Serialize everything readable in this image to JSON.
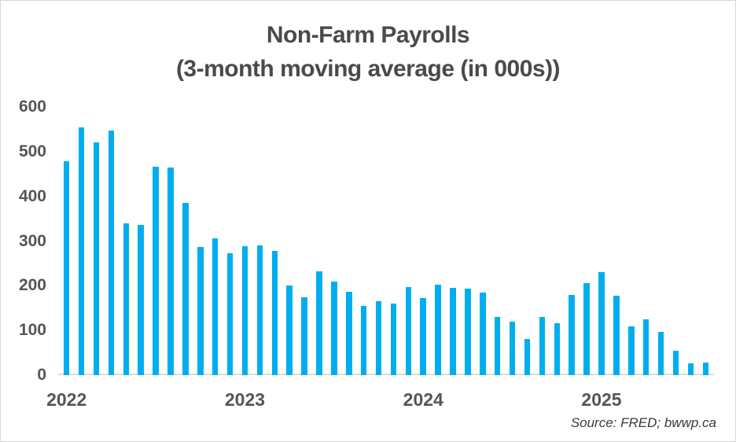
{
  "title": {
    "line1": "Non-Farm Payrolls",
    "line2": "(3-month moving average (in 000s))"
  },
  "source_note": "Source: FRED; bwwp.ca",
  "colors": {
    "bar": "#00AEF0",
    "title_text": "#4A4A4A",
    "axis_text": "#555555",
    "axis_line": "#DCDCDC",
    "background": "#FFFFFF",
    "border": "#D6D6D6"
  },
  "chart_data": {
    "type": "bar",
    "title": "Non-Farm Payrolls (3-month moving average (in 000s))",
    "xlabel": "",
    "ylabel": "",
    "ylim": [
      0,
      600
    ],
    "y_ticks": [
      0,
      100,
      200,
      300,
      400,
      500,
      600
    ],
    "grid": false,
    "legend": false,
    "x": [
      "Jan 2022",
      "Feb 2022",
      "Mar 2022",
      "Apr 2022",
      "May 2022",
      "Jun 2022",
      "Jul 2022",
      "Aug 2022",
      "Sep 2022",
      "Oct 2022",
      "Nov 2022",
      "Dec 2022",
      "Jan 2023",
      "Feb 2023",
      "Mar 2023",
      "Apr 2023",
      "May 2023",
      "Jun 2023",
      "Jul 2023",
      "Aug 2023",
      "Sep 2023",
      "Oct 2023",
      "Nov 2023",
      "Dec 2023",
      "Jan 2024",
      "Feb 2024",
      "Mar 2024",
      "Apr 2024",
      "May 2024",
      "Jun 2024",
      "Jul 2024",
      "Aug 2024",
      "Sep 2024",
      "Oct 2024",
      "Nov 2024",
      "Dec 2024",
      "Jan 2025",
      "Feb 2025",
      "Mar 2025",
      "Apr 2025",
      "May 2025",
      "Jun 2025",
      "Jul 2025",
      "Aug 2025"
    ],
    "values": [
      478,
      555,
      521,
      548,
      340,
      336,
      466,
      464,
      386,
      287,
      307,
      273,
      288,
      291,
      278,
      201,
      175,
      232,
      210,
      187,
      154,
      166,
      161,
      197,
      173,
      202,
      195,
      194,
      184,
      130,
      119,
      81,
      131,
      116,
      180,
      206,
      230,
      178,
      109,
      125,
      97,
      54,
      27,
      28
    ],
    "x_tick_labels": [
      {
        "label": "2022",
        "month_index": 0
      },
      {
        "label": "2023",
        "month_index": 12
      },
      {
        "label": "2024",
        "month_index": 24
      },
      {
        "label": "2025",
        "month_index": 36
      }
    ]
  }
}
